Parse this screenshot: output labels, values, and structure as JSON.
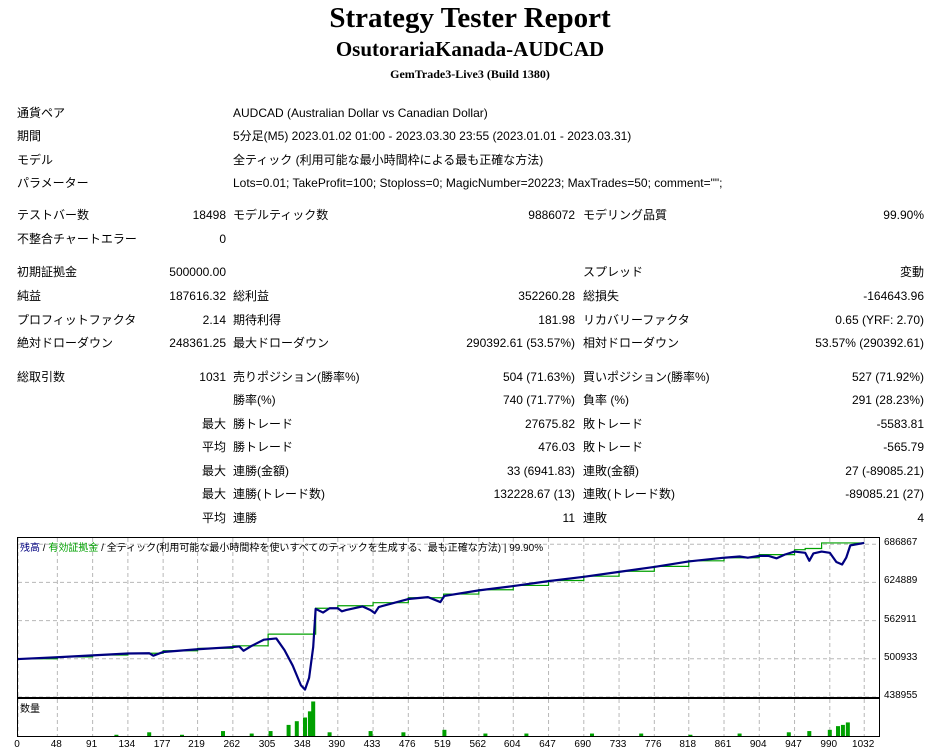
{
  "header": {
    "title": "Strategy Tester Report",
    "expert": "OsutorariaKanada-AUDCAD",
    "server": "GemTrade3-Live3 (Build 1380)"
  },
  "info": [
    {
      "label": "通貨ペア",
      "value": "AUDCAD (Australian Dollar vs Canadian Dollar)"
    },
    {
      "label": "期間",
      "value": "5分足(M5) 2023.01.02 01:00 - 2023.03.30 23:55 (2023.01.01 - 2023.03.31)"
    },
    {
      "label": "モデル",
      "value": "全ティック (利用可能な最小時間枠による最も正確な方法)"
    },
    {
      "label": "パラメーター",
      "value": "Lots=0.01; TakeProfit=100; Stoploss=0; MagicNumber=20223; MaxTrades=50; comment=\"\";"
    }
  ],
  "stats1": {
    "bars_label": "テストバー数",
    "bars": "18498",
    "ticks_label": "モデルティック数",
    "ticks": "9886072",
    "quality_label": "モデリング品質",
    "quality": "99.90%",
    "errors_label": "不整合チャートエラー",
    "errors": "0"
  },
  "stats2": {
    "deposit_label": "初期証拠金",
    "deposit": "500000.00",
    "spread_label": "スプレッド",
    "spread": "変動",
    "net_label": "純益",
    "net": "187616.32",
    "gross_profit_label": "総利益",
    "gross_profit": "352260.28",
    "gross_loss_label": "総損失",
    "gross_loss": "-164643.96",
    "pf_label": "プロフィットファクタ",
    "pf": "2.14",
    "expected_label": "期待利得",
    "expected": "181.98",
    "recovery_label": "リカバリーファクタ",
    "recovery": "0.65 (YRF: 2.70)",
    "abs_dd_label": "絶対ドローダウン",
    "abs_dd": "248361.25",
    "max_dd_label": "最大ドローダウン",
    "max_dd": "290392.61 (53.57%)",
    "rel_dd_label": "相対ドローダウン",
    "rel_dd": "53.57% (290392.61)"
  },
  "stats3": {
    "total_label": "総取引数",
    "total": "1031",
    "short_label": "売りポジション(勝率%)",
    "short": "504 (71.63%)",
    "long_label": "買いポジション(勝率%)",
    "long": "527 (71.92%)",
    "win_label": "勝率(%)",
    "win": "740 (71.77%)",
    "loss_label": "負率 (%)",
    "loss": "291 (28.23%)",
    "max": "最大",
    "avg": "平均",
    "win_trade": "勝トレード",
    "loss_trade": "敗トレード",
    "largest_win": "27675.82",
    "largest_loss": "-5583.81",
    "avg_win": "476.03",
    "avg_loss": "-565.79",
    "consec_win_amt_label": "連勝(金額)",
    "consec_win_amt": "33 (6941.83)",
    "consec_loss_amt_label": "連敗(金額)",
    "consec_loss_amt": "27 (-89085.21)",
    "consec_win_cnt_label": "連勝(トレード数)",
    "consec_win_cnt": "132228.67 (13)",
    "consec_loss_cnt_label": "連敗(トレード数)",
    "consec_loss_cnt": "-89085.21 (27)",
    "avg_win_streak_label": "連勝",
    "avg_win_streak": "11",
    "avg_loss_streak_label": "連敗",
    "avg_loss_streak": "4"
  },
  "chart_data": {
    "type": "line",
    "legend": {
      "balance": "残高",
      "equity": "有効証拠金",
      "model": "全ティック(利用可能な最小時間枠を使いすべてのティックを生成する、最も正確な方法)",
      "quality": "99.90%"
    },
    "volume_label": "数量",
    "colors": {
      "balance": "#000080",
      "equity": "#00a000",
      "volume": "#00a000",
      "grid": "#b8b8b8"
    },
    "y_ticks": [
      686867,
      624889,
      562911,
      500933,
      438955
    ],
    "ylim": [
      438955,
      697000
    ],
    "x_ticks": [
      "0",
      "48",
      "91",
      "134",
      "177",
      "219",
      "262",
      "305",
      "348",
      "390",
      "433",
      "476",
      "519",
      "562",
      "604",
      "647",
      "690",
      "733",
      "776",
      "818",
      "861",
      "904",
      "947",
      "990",
      "1032"
    ],
    "xlim": [
      0,
      1050
    ],
    "balance": [
      [
        0,
        501000
      ],
      [
        48,
        504000
      ],
      [
        91,
        507000
      ],
      [
        134,
        510000
      ],
      [
        177,
        514000
      ],
      [
        219,
        518000
      ],
      [
        262,
        522000
      ],
      [
        305,
        541000
      ],
      [
        335,
        541000
      ],
      [
        355,
        541000
      ],
      [
        363,
        583000
      ],
      [
        390,
        587000
      ],
      [
        433,
        592000
      ],
      [
        476,
        600000
      ],
      [
        519,
        606000
      ],
      [
        562,
        613000
      ],
      [
        604,
        620000
      ],
      [
        647,
        628000
      ],
      [
        690,
        635000
      ],
      [
        733,
        643000
      ],
      [
        776,
        651000
      ],
      [
        818,
        660000
      ],
      [
        861,
        665000
      ],
      [
        904,
        670000
      ],
      [
        947,
        678000
      ],
      [
        960,
        680000
      ],
      [
        980,
        689000
      ],
      [
        1032,
        689000
      ]
    ],
    "equity": [
      [
        0,
        500500
      ],
      [
        48,
        503500
      ],
      [
        91,
        506500
      ],
      [
        134,
        509500
      ],
      [
        160,
        510000
      ],
      [
        165,
        506000
      ],
      [
        177,
        512000
      ],
      [
        219,
        516500
      ],
      [
        262,
        520000
      ],
      [
        270,
        521000
      ],
      [
        275,
        514000
      ],
      [
        285,
        522000
      ],
      [
        300,
        532000
      ],
      [
        315,
        534000
      ],
      [
        325,
        515000
      ],
      [
        335,
        490000
      ],
      [
        345,
        458000
      ],
      [
        350,
        451000
      ],
      [
        355,
        470000
      ],
      [
        360,
        520000
      ],
      [
        363,
        582000
      ],
      [
        372,
        576000
      ],
      [
        380,
        583000
      ],
      [
        390,
        583000
      ],
      [
        395,
        578000
      ],
      [
        400,
        580000
      ],
      [
        420,
        586000
      ],
      [
        430,
        580000
      ],
      [
        435,
        575000
      ],
      [
        440,
        585000
      ],
      [
        476,
        598000
      ],
      [
        500,
        601000
      ],
      [
        515,
        593000
      ],
      [
        520,
        603000
      ],
      [
        562,
        612000
      ],
      [
        604,
        619000
      ],
      [
        647,
        627000
      ],
      [
        690,
        634000
      ],
      [
        733,
        642000
      ],
      [
        776,
        650000
      ],
      [
        818,
        659000
      ],
      [
        861,
        665000
      ],
      [
        880,
        667000
      ],
      [
        890,
        665000
      ],
      [
        904,
        668000
      ],
      [
        915,
        668000
      ],
      [
        925,
        664000
      ],
      [
        935,
        670000
      ],
      [
        947,
        675000
      ],
      [
        960,
        673000
      ],
      [
        965,
        660000
      ],
      [
        970,
        672000
      ],
      [
        980,
        675000
      ],
      [
        990,
        673000
      ],
      [
        998,
        658000
      ],
      [
        1005,
        654000
      ],
      [
        1010,
        665000
      ],
      [
        1015,
        685000
      ],
      [
        1032,
        689000
      ]
    ],
    "volume": [
      [
        120,
        1
      ],
      [
        160,
        3
      ],
      [
        200,
        1
      ],
      [
        250,
        4
      ],
      [
        285,
        2
      ],
      [
        308,
        4
      ],
      [
        330,
        9
      ],
      [
        340,
        12
      ],
      [
        350,
        15
      ],
      [
        356,
        20
      ],
      [
        360,
        28
      ],
      [
        380,
        3
      ],
      [
        430,
        4
      ],
      [
        470,
        3
      ],
      [
        520,
        5
      ],
      [
        570,
        2
      ],
      [
        620,
        2
      ],
      [
        700,
        2
      ],
      [
        760,
        2
      ],
      [
        820,
        1
      ],
      [
        880,
        2
      ],
      [
        940,
        3
      ],
      [
        965,
        4
      ],
      [
        990,
        5
      ],
      [
        1000,
        8
      ],
      [
        1006,
        9
      ],
      [
        1012,
        11
      ]
    ]
  }
}
